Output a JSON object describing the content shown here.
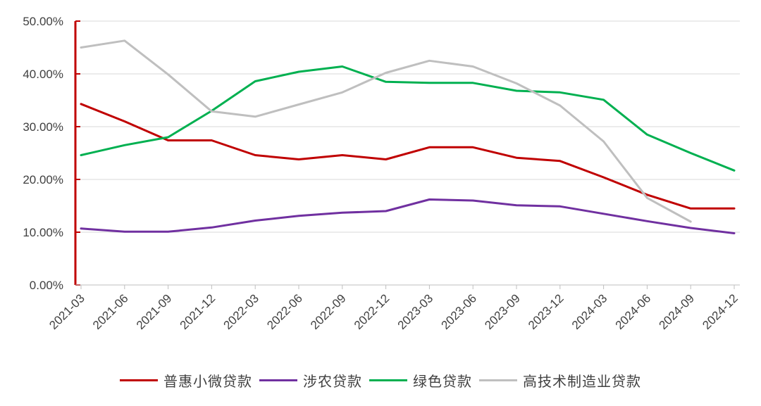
{
  "chart_data": {
    "type": "line",
    "title": "",
    "xlabel": "",
    "ylabel": "",
    "ylim": [
      0,
      50
    ],
    "y_ticks": [
      "0.00%",
      "10.00%",
      "20.00%",
      "30.00%",
      "40.00%",
      "50.00%"
    ],
    "grid": "horizontal",
    "legend_position": "bottom",
    "axis_color": "#c00000",
    "categories": [
      "2021-03",
      "2021-06",
      "2021-09",
      "2021-12",
      "2022-03",
      "2022-06",
      "2022-09",
      "2022-12",
      "2023-03",
      "2023-06",
      "2023-09",
      "2023-12",
      "2024-03",
      "2024-06",
      "2024-09",
      "2024-12"
    ],
    "series": [
      {
        "name": "普惠小微贷款",
        "color": "#c00000",
        "values": [
          34.3,
          31.0,
          27.4,
          27.4,
          24.6,
          23.8,
          24.6,
          23.8,
          26.1,
          26.1,
          24.1,
          23.5,
          20.4,
          17.1,
          14.5,
          14.5
        ]
      },
      {
        "name": "涉农贷款",
        "color": "#7030a0",
        "values": [
          10.7,
          10.1,
          10.1,
          10.9,
          12.2,
          13.1,
          13.7,
          14.0,
          16.2,
          16.0,
          15.1,
          14.9,
          13.5,
          12.1,
          10.8,
          9.8
        ]
      },
      {
        "name": "绿色贷款",
        "color": "#00b050",
        "values": [
          24.6,
          26.5,
          28.0,
          33.0,
          38.6,
          40.4,
          41.4,
          38.5,
          38.3,
          38.3,
          36.8,
          36.5,
          35.1,
          28.5,
          25.0,
          21.7
        ]
      },
      {
        "name": "高技术制造业贷款",
        "color": "#bfbfbf",
        "values": [
          45.0,
          46.3,
          39.9,
          32.9,
          31.9,
          34.2,
          36.5,
          40.2,
          42.5,
          41.4,
          38.2,
          34.0,
          27.2,
          16.5,
          12.0,
          null
        ]
      }
    ]
  }
}
